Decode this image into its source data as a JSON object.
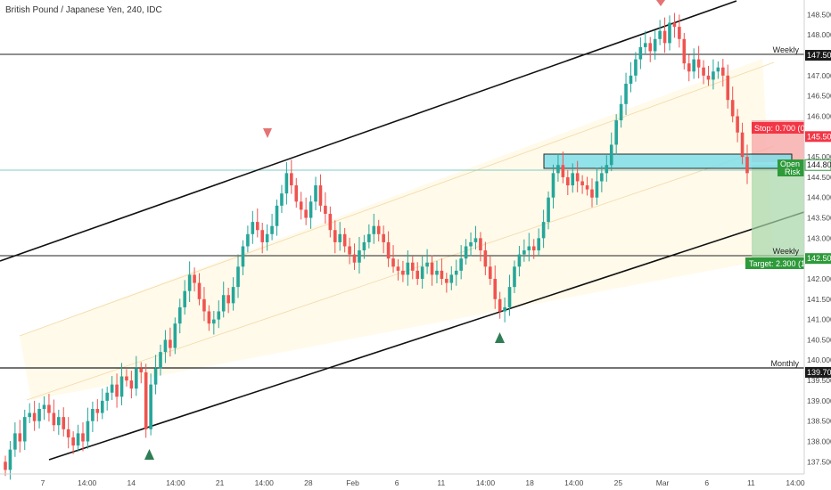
{
  "header": {
    "symbol_title": "British Pound / Japanese Yen, 240, IDC"
  },
  "colors": {
    "up": "#26a69a",
    "down": "#ef5350",
    "stop_zone": "#f7a9a9",
    "target_zone": "#a5d6a7",
    "entry_box": "#80deea",
    "channel_fill": "#fff8e1",
    "tag_green": "#2e9a3a",
    "tag_red": "#f23645",
    "axis_text": "#4a4a4a"
  },
  "chart_data": {
    "type": "candlestick",
    "title": "British Pound / Japanese Yen, 240, IDC",
    "ylim": [
      137.2,
      148.75
    ],
    "y_ticks": [
      "137.500",
      "138.000",
      "138.500",
      "139.000",
      "139.500",
      "140.000",
      "140.500",
      "141.000",
      "141.500",
      "142.000",
      "142.500",
      "143.000",
      "143.500",
      "144.000",
      "144.500",
      "145.000",
      "145.500",
      "146.000",
      "146.500",
      "147.000",
      "147.500",
      "148.000",
      "148.500"
    ],
    "x_ticks": [
      "7",
      "14:00",
      "14",
      "14:00",
      "21",
      "14:00",
      "28",
      "Feb",
      "6",
      "11",
      "14:00",
      "18",
      "14:00",
      "25",
      "Mar",
      "6",
      "11",
      "14:00"
    ],
    "levels": [
      {
        "name": "Weekly",
        "price": "147.500"
      },
      {
        "name": "Weekly",
        "price": "142.500"
      },
      {
        "name": "Monthly",
        "price": "139.700"
      }
    ],
    "price_tags": [
      {
        "label": "145.500",
        "kind": "stop"
      },
      {
        "label": "144.800",
        "kind": "current"
      },
      {
        "label": "142.500",
        "kind": "target"
      }
    ],
    "position": {
      "stop_label": "Stop: 0.700 (0",
      "target_label": "Target: 2.300 (1",
      "open_label": "Open",
      "risk_label": "Risk",
      "entry": 144.8,
      "stop": 145.5,
      "target": 142.5
    },
    "close_series": [
      137.3,
      137.8,
      138.2,
      138.0,
      138.6,
      138.7,
      138.5,
      138.8,
      138.9,
      138.7,
      138.4,
      138.6,
      138.3,
      138.1,
      137.9,
      138.2,
      138.0,
      138.5,
      138.8,
      138.7,
      139.0,
      139.2,
      139.4,
      139.1,
      139.6,
      139.5,
      139.3,
      139.8,
      139.7,
      138.3,
      139.4,
      139.8,
      140.2,
      140.5,
      140.3,
      140.9,
      141.3,
      141.7,
      142.1,
      141.9,
      141.5,
      141.2,
      140.9,
      141.0,
      141.2,
      141.6,
      141.4,
      141.8,
      142.3,
      142.8,
      143.1,
      143.4,
      143.2,
      142.9,
      143.1,
      143.3,
      143.8,
      144.1,
      144.6,
      144.3,
      143.9,
      143.7,
      143.5,
      143.9,
      144.3,
      143.8,
      143.6,
      143.2,
      142.9,
      143.1,
      142.8,
      142.6,
      142.4,
      142.7,
      142.9,
      143.1,
      143.3,
      143.1,
      142.9,
      142.5,
      142.3,
      142.2,
      142.1,
      142.4,
      142.2,
      142.0,
      142.3,
      142.4,
      142.1,
      142.2,
      142.0,
      141.9,
      142.1,
      142.2,
      142.5,
      142.8,
      142.9,
      143.0,
      142.7,
      142.3,
      142.0,
      141.5,
      141.2,
      141.3,
      141.8,
      142.3,
      142.6,
      142.7,
      142.8,
      142.7,
      143.0,
      143.4,
      144.0,
      144.6,
      144.8,
      144.5,
      144.3,
      144.6,
      144.4,
      144.3,
      144.2,
      144.0,
      144.4,
      144.6,
      144.8,
      145.3,
      145.9,
      146.3,
      146.8,
      147.0,
      147.4,
      147.7,
      147.8,
      147.6,
      147.9,
      148.1,
      147.8,
      148.3,
      148.2,
      147.9,
      147.3,
      147.1,
      147.4,
      147.2,
      147.0,
      146.9,
      147.1,
      147.2,
      147.0,
      146.4,
      146.0,
      145.6,
      145.0,
      144.6
    ]
  }
}
